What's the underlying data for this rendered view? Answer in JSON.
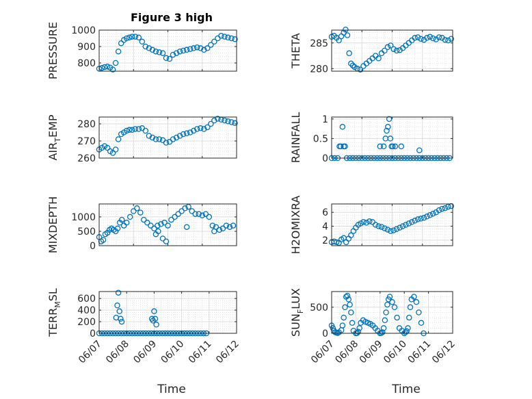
{
  "figure": {
    "title": "Figure 3 high",
    "xlabel": "Time",
    "marker_color": "#0072BD"
  },
  "chart_data": [
    {
      "type": "scatter",
      "ylabel": "PRESSURE",
      "xlim": [
        "06/07",
        "06/11"
      ],
      "ylim": [
        750,
        1000
      ],
      "yticks": [
        800,
        900,
        1000
      ],
      "x": [
        0.0,
        0.08,
        0.16,
        0.24,
        0.32,
        0.4,
        0.48,
        0.56,
        0.64,
        0.72,
        0.8,
        0.88,
        0.96,
        1.05,
        1.15,
        1.25,
        1.35,
        1.45,
        1.55,
        1.65,
        1.75,
        1.85,
        1.95,
        2.05,
        2.15,
        2.25,
        2.35,
        2.45,
        2.55,
        2.65,
        2.75,
        2.85,
        2.95,
        3.05,
        3.15,
        3.25,
        3.35,
        3.45,
        3.55,
        3.65,
        3.75,
        3.85,
        3.95
      ],
      "y": [
        765,
        770,
        775,
        778,
        772,
        760,
        800,
        870,
        920,
        940,
        950,
        955,
        960,
        960,
        955,
        930,
        900,
        890,
        880,
        870,
        865,
        860,
        830,
        825,
        850,
        860,
        870,
        875,
        880,
        885,
        890,
        895,
        890,
        880,
        890,
        910,
        930,
        950,
        965,
        960,
        955,
        950,
        945
      ]
    },
    {
      "type": "scatter",
      "ylabel": "THETA",
      "xlim": [
        "06/07",
        "06/11"
      ],
      "ylim": [
        279.5,
        287.5
      ],
      "yticks": [
        280,
        285
      ],
      "x": [
        0.0,
        0.08,
        0.16,
        0.24,
        0.32,
        0.4,
        0.46,
        0.52,
        0.58,
        0.64,
        0.7,
        0.76,
        0.85,
        0.95,
        1.05,
        1.15,
        1.25,
        1.35,
        1.45,
        1.55,
        1.65,
        1.75,
        1.85,
        1.95,
        2.05,
        2.15,
        2.25,
        2.35,
        2.45,
        2.55,
        2.65,
        2.75,
        2.85,
        2.95,
        3.05,
        3.15,
        3.25,
        3.35,
        3.45,
        3.55,
        3.65,
        3.75,
        3.85,
        3.95
      ],
      "y": [
        286.2,
        286.4,
        286.0,
        285.5,
        286.3,
        287.0,
        287.6,
        286.5,
        283.0,
        281.0,
        280.6,
        280.3,
        280.0,
        279.8,
        280.5,
        281.0,
        281.5,
        282.0,
        282.5,
        282.0,
        283.0,
        283.5,
        284.2,
        284.5,
        283.8,
        283.5,
        283.6,
        284.0,
        284.5,
        285.0,
        285.5,
        286.0,
        286.1,
        285.8,
        285.6,
        286.0,
        286.2,
        285.9,
        285.7,
        286.1,
        286.0,
        285.6,
        285.5,
        285.8
      ]
    },
    {
      "type": "scatter",
      "ylabel": "AIR_TEMP",
      "xlim": [
        "06/07",
        "06/11"
      ],
      "ylim": [
        260,
        284
      ],
      "yticks": [
        260,
        270,
        280
      ],
      "x": [
        0.0,
        0.08,
        0.16,
        0.24,
        0.32,
        0.4,
        0.48,
        0.56,
        0.64,
        0.72,
        0.8,
        0.88,
        0.96,
        1.05,
        1.15,
        1.25,
        1.35,
        1.45,
        1.55,
        1.65,
        1.75,
        1.85,
        1.95,
        2.05,
        2.15,
        2.25,
        2.35,
        2.45,
        2.55,
        2.65,
        2.75,
        2.85,
        2.95,
        3.05,
        3.15,
        3.25,
        3.35,
        3.45,
        3.55,
        3.65,
        3.75,
        3.85,
        3.95
      ],
      "y": [
        265,
        266,
        267,
        266,
        264,
        263,
        265,
        271,
        274,
        275,
        276,
        276.5,
        276.5,
        277,
        277,
        277.5,
        276,
        273,
        272,
        271,
        271,
        270.5,
        269,
        269.5,
        271,
        272,
        273,
        274,
        274.5,
        275,
        276,
        277,
        277.5,
        277,
        278,
        280,
        282,
        283,
        282.5,
        282,
        281.5,
        281,
        280.5
      ]
    },
    {
      "type": "scatter",
      "ylabel": "RAINFALL",
      "xlim": [
        "06/07",
        "06/11"
      ],
      "ylim": [
        0,
        1.05
      ],
      "yticks": [
        0,
        0.5,
        1
      ],
      "x": [
        0.0,
        0.1,
        0.2,
        0.26,
        0.3,
        0.36,
        0.4,
        0.44,
        0.5,
        0.6,
        0.7,
        0.8,
        0.9,
        1.0,
        1.1,
        1.2,
        1.3,
        1.4,
        1.5,
        1.6,
        1.7,
        1.8,
        1.9,
        2.0,
        2.1,
        2.2,
        2.3,
        2.4,
        2.5,
        2.6,
        2.7,
        2.8,
        2.9,
        3.0,
        3.1,
        3.2,
        3.3,
        3.4,
        3.5,
        3.6,
        3.7,
        3.8,
        3.9,
        1.6,
        1.72,
        1.78,
        1.82,
        1.86,
        1.9,
        1.94,
        1.98,
        2.02,
        2.1,
        2.3,
        2.9
      ],
      "y": [
        0,
        0,
        0,
        0.3,
        0.3,
        0.8,
        0.3,
        0.3,
        0,
        0,
        0,
        0,
        0,
        0,
        0,
        0,
        0,
        0,
        0,
        0,
        0,
        0,
        0,
        0,
        0,
        0,
        0,
        0,
        0,
        0,
        0,
        0,
        0,
        0,
        0,
        0,
        0,
        0,
        0,
        0,
        0,
        0,
        0,
        0.3,
        0.3,
        0.5,
        0.7,
        0.8,
        1.0,
        0.5,
        0.3,
        0.3,
        0.3,
        0.3,
        0.2
      ]
    },
    {
      "type": "scatter",
      "ylabel": "MIXDEPTH",
      "xlim": [
        "06/07",
        "06/11"
      ],
      "ylim": [
        0,
        1450
      ],
      "yticks": [
        0,
        500,
        1000
      ],
      "x": [
        0.0,
        0.06,
        0.12,
        0.18,
        0.24,
        0.3,
        0.36,
        0.42,
        0.48,
        0.54,
        0.6,
        0.66,
        0.72,
        0.8,
        0.9,
        1.0,
        1.1,
        1.2,
        1.3,
        1.4,
        1.5,
        1.6,
        1.7,
        1.8,
        1.9,
        2.0,
        2.1,
        2.2,
        2.3,
        2.4,
        2.5,
        2.6,
        2.7,
        2.8,
        2.9,
        3.0,
        3.1,
        3.2,
        3.3,
        3.4,
        3.5,
        3.6,
        3.7,
        3.8,
        3.9,
        1.65,
        1.72,
        1.85,
        1.95,
        2.55,
        3.35
      ],
      "y": [
        300,
        150,
        200,
        400,
        450,
        550,
        600,
        550,
        500,
        600,
        800,
        900,
        700,
        800,
        1000,
        1200,
        1300,
        1150,
        900,
        800,
        700,
        600,
        700,
        750,
        800,
        700,
        900,
        1000,
        1100,
        1200,
        1300,
        1350,
        1200,
        1100,
        1100,
        1050,
        1100,
        1000,
        700,
        650,
        550,
        600,
        700,
        650,
        700,
        400,
        500,
        250,
        150,
        650,
        500
      ]
    },
    {
      "type": "scatter",
      "ylabel": "H2OMIXRA",
      "xlim": [
        "06/07",
        "06/11"
      ],
      "ylim": [
        1.2,
        7.2
      ],
      "yticks": [
        2,
        4,
        6
      ],
      "x": [
        0.0,
        0.08,
        0.16,
        0.24,
        0.32,
        0.4,
        0.48,
        0.56,
        0.64,
        0.72,
        0.8,
        0.88,
        0.96,
        1.05,
        1.15,
        1.25,
        1.35,
        1.45,
        1.55,
        1.65,
        1.75,
        1.85,
        1.95,
        2.05,
        2.15,
        2.25,
        2.35,
        2.45,
        2.55,
        2.65,
        2.75,
        2.85,
        2.95,
        3.05,
        3.15,
        3.25,
        3.35,
        3.45,
        3.55,
        3.65,
        3.75,
        3.85,
        3.95
      ],
      "y": [
        1.7,
        1.8,
        1.7,
        1.6,
        2.1,
        2.3,
        1.7,
        2.2,
        2.7,
        3.3,
        3.8,
        4.2,
        4.4,
        4.6,
        4.5,
        4.7,
        4.6,
        4.2,
        4.0,
        3.9,
        3.7,
        3.5,
        3.3,
        3.4,
        3.6,
        3.8,
        4.0,
        4.2,
        4.4,
        4.6,
        4.8,
        5.0,
        5.1,
        5.2,
        5.4,
        5.6,
        5.8,
        6.0,
        6.3,
        6.5,
        6.6,
        6.8,
        6.9
      ]
    },
    {
      "type": "scatter",
      "ylabel": "TERR_MSL",
      "xlim": [
        "06/07",
        "06/12"
      ],
      "ylim": [
        0,
        720
      ],
      "yticks": [
        0,
        200,
        400,
        600
      ],
      "x": [
        0.0,
        0.1,
        0.2,
        0.3,
        0.4,
        0.5,
        0.6,
        0.7,
        0.8,
        0.9,
        1.0,
        1.1,
        1.2,
        1.3,
        1.4,
        1.5,
        1.6,
        1.7,
        1.8,
        1.9,
        2.0,
        2.1,
        2.2,
        2.3,
        2.4,
        2.5,
        2.6,
        2.7,
        2.8,
        2.9,
        3.0,
        3.1,
        3.2,
        3.3,
        3.4,
        3.5,
        3.6,
        3.7,
        3.8,
        3.9,
        0.62,
        0.66,
        0.7,
        0.74,
        0.78,
        0.82,
        1.92,
        1.96,
        2.0,
        2.04,
        2.08
      ],
      "y": [
        0,
        0,
        0,
        0,
        0,
        0,
        0,
        0,
        0,
        0,
        0,
        0,
        0,
        0,
        0,
        0,
        0,
        0,
        0,
        0,
        0,
        0,
        0,
        0,
        0,
        0,
        0,
        0,
        0,
        0,
        0,
        0,
        0,
        0,
        0,
        0,
        0,
        0,
        0,
        0,
        270,
        480,
        700,
        380,
        250,
        200,
        250,
        220,
        380,
        250,
        150
      ]
    },
    {
      "type": "scatter",
      "ylabel": "SUN_FLUX",
      "xlim": [
        "06/07",
        "06/12"
      ],
      "ylim": [
        0,
        800
      ],
      "yticks": [
        0,
        500
      ],
      "x": [
        0.0,
        0.05,
        0.1,
        0.15,
        0.2,
        0.25,
        0.3,
        0.4,
        0.45,
        0.5,
        0.55,
        0.6,
        0.65,
        0.7,
        0.75,
        0.8,
        0.85,
        0.9,
        1.0,
        1.05,
        1.1,
        1.15,
        1.2,
        1.3,
        1.4,
        1.5,
        1.6,
        1.7,
        1.8,
        1.9,
        2.0,
        2.05,
        2.1,
        2.15,
        2.2,
        2.25,
        2.3,
        2.35,
        2.4,
        2.5,
        2.6,
        2.7,
        2.8,
        2.9,
        3.0,
        3.05,
        3.1,
        3.15,
        3.2,
        3.25,
        3.3,
        3.4,
        3.5,
        3.6,
        3.7,
        3.8
      ],
      "y": [
        150,
        100,
        50,
        20,
        10,
        5,
        20,
        60,
        150,
        300,
        500,
        700,
        720,
        650,
        550,
        400,
        200,
        50,
        0,
        5,
        30,
        100,
        200,
        250,
        220,
        200,
        180,
        150,
        100,
        50,
        0,
        5,
        20,
        100,
        250,
        400,
        550,
        650,
        700,
        600,
        500,
        300,
        100,
        50,
        0,
        20,
        40,
        100,
        300,
        500,
        650,
        700,
        600,
        400,
        200,
        0
      ]
    }
  ]
}
